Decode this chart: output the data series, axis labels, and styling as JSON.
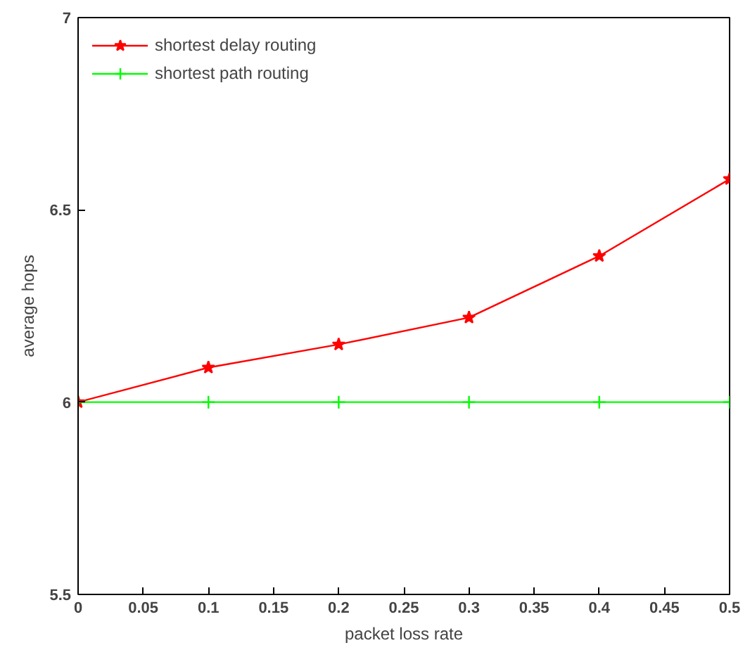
{
  "chart_data": {
    "type": "line",
    "xlabel": "packet loss rate",
    "ylabel": "average hops",
    "x": [
      0,
      0.1,
      0.2,
      0.3,
      0.4,
      0.5
    ],
    "series": [
      {
        "name": "shortest delay routing",
        "color": "#ff0000",
        "marker": "star",
        "values": [
          6.0,
          6.09,
          6.15,
          6.22,
          6.38,
          6.58
        ]
      },
      {
        "name": "shortest path routing",
        "color": "#00ff00",
        "marker": "cross",
        "values": [
          6.0,
          6.0,
          6.0,
          6.0,
          6.0,
          6.0
        ]
      }
    ],
    "xlim": [
      0,
      0.5
    ],
    "ylim": [
      5.5,
      7
    ],
    "xticks": [
      0,
      0.05,
      0.1,
      0.15,
      0.2,
      0.25,
      0.3,
      0.35,
      0.4,
      0.45,
      0.5
    ],
    "yticks": [
      5.5,
      6,
      6.5,
      7
    ],
    "grid": false,
    "legend": "top left",
    "line_style": "solid"
  }
}
